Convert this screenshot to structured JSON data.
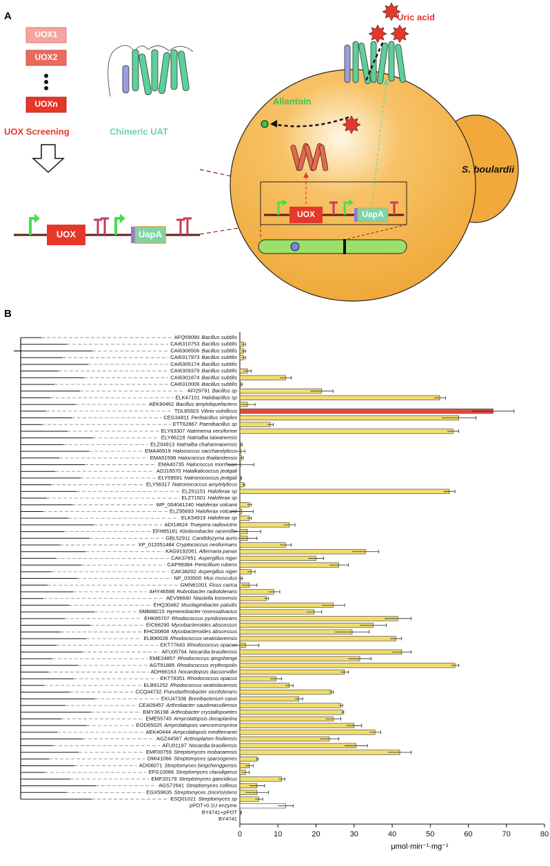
{
  "panel_a": {
    "panel_label": "A",
    "uox1": "UOX1",
    "uox2": "UOX2",
    "uoxn": "UOXn",
    "uox_screening": "UOX Screening",
    "chimeric_uat": "Chimeric UAT",
    "construct_uox": "UOX",
    "construct_uapa": "UapA",
    "uric_acid": "Uric acid",
    "allantoin": "Allantoin",
    "cell": "S. boulardii",
    "cell_uox": "UOX",
    "cell_uapa": "UapA"
  },
  "chart_data": {
    "type": "barh",
    "panel_label": "B",
    "x_label": "μmol·min⁻¹·mg⁻¹",
    "categories": [
      "AFQ59090",
      "CAI6310753",
      "CAI6306506",
      "CAI6317973",
      "CAI6305174",
      "CAI6309379",
      "CAI6301874",
      "CAI6310006",
      "AFI29791",
      "ELK47101",
      "AEK90462",
      "TDL85923",
      "CEG34811",
      "ETT62867",
      "ELY63307",
      "ELY86228",
      "ELZ04913",
      "EMA46919",
      "EMA51598",
      "EMA40735",
      "ADJ16570",
      "ELY59591",
      "ELY56317",
      "ELZ61151",
      "ELZ71501",
      "WP_004041240",
      "ELZ95693",
      "ELK54919",
      "ADI14624",
      "EFH85181",
      "GBL52911",
      "XP_012051484",
      "KAG9192061",
      "CAK37651",
      "CAP99384",
      "CAK38202",
      "NP_033500",
      "GMN61001",
      "AHY46588",
      "AEV96840",
      "EHQ30462",
      "SMB88215",
      "EHK85707",
      "EIC66290",
      "EHC00808",
      "ELB90028",
      "EKT77643",
      "AFU05794",
      "EME24857",
      "AGT91885",
      "ADH66163",
      "EKT78351",
      "ELB91252",
      "CCQ44732",
      "EKU47336",
      "CEA09457",
      "EMY36198",
      "EME55745",
      "EOD65025",
      "AEK40444",
      "AGZ44567",
      "AFU01197",
      "EMF00759",
      "OMI41066",
      "ADI06071",
      "EFG10066",
      "EMF20179",
      "AGS72641",
      "EGX59635",
      "ESQ01021",
      "pPOT+0.1U enzyme",
      "BY4741+pPOT",
      "BY4741"
    ],
    "species": [
      "Bacillus subtilis",
      "Bacillus subtilis",
      "Bacillus subtilis",
      "Bacillus subtilis",
      "Bacillus subtilis",
      "Bacillus subtilis",
      "Bacillus subtilis",
      "Bacillus subtilis",
      "Bacillus sp",
      "Halobacillus sp",
      "Bacillus amyloliquefaciens",
      "Vibrio vulnificus",
      "Peribacillus simplex",
      "Paenibacillus sp",
      "Natrinema versiforme",
      "Natrialba taiwanensis",
      "Natrialba chahannaoensis",
      "Halococcus saccharolyticus",
      "Halococcus thailandensis",
      "Halococcus morrhuae",
      "Halalkalicoccus jeotgali",
      "Natronococcus jeotgali",
      "Natronococcus amylolyticus",
      "Haloferax sp",
      "Haloferax sp",
      "Haloferax volcanii",
      "Haloferax volcanii",
      "Haloferax sp",
      "Truepera radiovictrix",
      "Ktedonobacter racemifer",
      "Candidozyma auris",
      "Cryptococcus neoformans",
      "Alternaria panax",
      "Aspergillus niger",
      "Penicillium rubens",
      "Aspergillus niger",
      "Mus musculus",
      "Ficus carica",
      "Rubrobacter radiotolerans",
      "Niastella koreensis",
      "Mucilaginibacter paludis",
      "Hymenobacter roseosalivarius",
      "Rhodococcus pyridinivorans",
      "Mycobacteroides abscessus",
      "Mycobacteroides abscessus",
      "Rhodococcus wratislaviensis",
      "Rhodococcus opacus",
      "Nocardia brasiliensis",
      "Rhodococcus qingshengii",
      "Rhodococcus erythropolis",
      "Nocardiopsis dassonvillei",
      "Rhodococcus opacus",
      "Rhodococcus wratislaviensis",
      "Pseudarthrobacter siccitolerans",
      "Brevibacterium casei",
      "Arthrobacter saudimassiliensis",
      "Arthrobacter crystallopoietes",
      "Amycolatopsis decaplanina",
      "Amycolatopsis vancoresmycina",
      "Amycolatopsis mediterranei",
      "Actinoplanes friuliensis",
      "Nocardia brasiliensis",
      "Streptomyces mobaraensis",
      "Streptomyces sparsogenes",
      "Streptomyces bingchenggensis",
      "Streptomyces clavuligerus",
      "Streptomyces gancidicus",
      "Streptomyces collinus",
      "Streptomyces zincirisistens",
      "Streptomyces sp",
      null,
      null,
      null
    ],
    "values": [
      0,
      1,
      1,
      1,
      0,
      2,
      12,
      0.3,
      21.5,
      52.5,
      2,
      66.5,
      57.5,
      8,
      56,
      0,
      0.3,
      0.3,
      0.5,
      0.2,
      0,
      0.2,
      1,
      55,
      0,
      2.5,
      0.5,
      2.5,
      13,
      2,
      2,
      12,
      33,
      20,
      26,
      3,
      0.2,
      2.5,
      9,
      7,
      24.5,
      19.5,
      41.5,
      35,
      29.5,
      41,
      1.5,
      42.5,
      31.5,
      56.5,
      27.5,
      9.5,
      13,
      24,
      15.5,
      26.5,
      27,
      24.5,
      30,
      35.5,
      23.5,
      30.5,
      42,
      4.5,
      2.5,
      1.5,
      11,
      4.5,
      4.5,
      5,
      12,
      0.2,
      0
    ],
    "errors": [
      0,
      0.5,
      0.5,
      0.5,
      0,
      1,
      1.5,
      0.3,
      3,
      1.5,
      2,
      5.5,
      4.5,
      0.8,
      1.5,
      0,
      0.3,
      1,
      0.4,
      3.5,
      0,
      0.2,
      0.3,
      1.5,
      0,
      0.5,
      3,
      0.5,
      1.5,
      3.5,
      2.5,
      1.5,
      3.5,
      2,
      2.5,
      1,
      0.5,
      2,
      1.5,
      0.5,
      3,
      2,
      3.5,
      3.5,
      4.5,
      1.5,
      3.5,
      2.5,
      3,
      1,
      1,
      1.5,
      1,
      0.5,
      1,
      0.5,
      0.3,
      2,
      2,
      1.5,
      2.5,
      3,
      3,
      0.3,
      1,
      1,
      0.8,
      2,
      3,
      1,
      2,
      0.2,
      0
    ],
    "colors": [
      "#f2dd6e",
      "#f2dd6e",
      "#f2dd6e",
      "#f2dd6e",
      "#f2dd6e",
      "#f2dd6e",
      "#f2dd6e",
      "#f2dd6e",
      "#f2dd6e",
      "#f2dd6e",
      "#f2dd6e",
      "#e5473b",
      "#f2dd6e",
      "#f2dd6e",
      "#f2dd6e",
      "#f2dd6e",
      "#f2dd6e",
      "#f2dd6e",
      "#f2dd6e",
      "#f2dd6e",
      "#f2dd6e",
      "#f2dd6e",
      "#f2dd6e",
      "#f2dd6e",
      "#f2dd6e",
      "#f2dd6e",
      "#f2dd6e",
      "#f2dd6e",
      "#f2dd6e",
      "#f2dd6e",
      "#f2dd6e",
      "#f2dd6e",
      "#f2dd6e",
      "#f2dd6e",
      "#f2dd6e",
      "#f2dd6e",
      "#f2dd6e",
      "#f2dd6e",
      "#f2dd6e",
      "#f2dd6e",
      "#f2dd6e",
      "#f2dd6e",
      "#f2dd6e",
      "#f2dd6e",
      "#f2dd6e",
      "#f2dd6e",
      "#f2dd6e",
      "#f2dd6e",
      "#f2dd6e",
      "#f2dd6e",
      "#f2dd6e",
      "#f2dd6e",
      "#f2dd6e",
      "#f2dd6e",
      "#f2dd6e",
      "#f2dd6e",
      "#f2dd6e",
      "#f2dd6e",
      "#f2dd6e",
      "#f2dd6e",
      "#f2dd6e",
      "#f2dd6e",
      "#f2dd6e",
      "#f2dd6e",
      "#f2dd6e",
      "#f2dd6e",
      "#f2dd6e",
      "#f2dd6e",
      "#f2dd6e",
      "#f2dd6e",
      "#ffffff",
      "#ffffff",
      "#ffffff"
    ],
    "xlim": [
      0,
      80
    ],
    "xticks": [
      0,
      10,
      20,
      30,
      40,
      50,
      60,
      70,
      80
    ]
  }
}
